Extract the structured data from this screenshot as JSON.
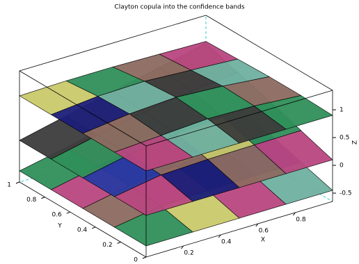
{
  "chart_data": {
    "type": "surface",
    "title": "Clayton copula into the confidence bands",
    "xlabel": "X",
    "ylabel": "Y",
    "zlabel": "Z",
    "x": [
      0,
      0.25,
      0.5,
      0.75,
      1
    ],
    "y": [
      0,
      0.25,
      0.5,
      0.75,
      1
    ],
    "xlim": [
      0,
      1
    ],
    "ylim": [
      0,
      1
    ],
    "zlim": [
      -0.65,
      1.35
    ],
    "xticks": [
      0.2,
      0.4,
      0.6,
      0.8
    ],
    "yticks": [
      0,
      0.2,
      0.4,
      0.6,
      0.8,
      1
    ],
    "zticks": [
      -0.5,
      0,
      0.5,
      1
    ],
    "colormap": [
      "#1b1f78",
      "#2f8f5a",
      "#b8477f",
      "#c9c96a",
      "#3c3c3c",
      "#8c6a60",
      "#2a3aa0",
      "#6fb0a0"
    ],
    "box_color": "#000000",
    "hidden_edge_color": "#33cccc",
    "series": [
      {
        "z": [
          [
            -0.45,
            -0.45,
            -0.45,
            -0.45,
            -0.45
          ],
          [
            -0.45,
            -0.32,
            -0.29,
            -0.28,
            -0.28
          ],
          [
            -0.45,
            -0.29,
            -0.18,
            -0.13,
            -0.1
          ],
          [
            -0.45,
            -0.28,
            -0.13,
            -0.01,
            0.08
          ],
          [
            -0.45,
            -0.28,
            -0.1,
            0.08,
            0.25
          ]
        ]
      },
      {
        "z": [
          [
            0.1,
            0.1,
            0.1,
            0.1,
            0.1
          ],
          [
            0.1,
            0.24,
            0.27,
            0.28,
            0.29
          ],
          [
            0.1,
            0.27,
            0.39,
            0.45,
            0.48
          ],
          [
            0.1,
            0.28,
            0.45,
            0.57,
            0.66
          ],
          [
            0.1,
            0.29,
            0.48,
            0.66,
            0.85
          ]
        ]
      },
      {
        "z": [
          [
            0.9,
            0.9,
            0.9,
            0.9,
            0.9
          ],
          [
            0.9,
            0.95,
            1.0,
            0.98,
            0.92
          ],
          [
            0.9,
            1.0,
            1.05,
            1.0,
            0.92
          ],
          [
            0.9,
            0.98,
            1.0,
            0.95,
            0.9
          ],
          [
            0.9,
            0.92,
            0.92,
            0.9,
            0.88
          ]
        ]
      }
    ]
  }
}
